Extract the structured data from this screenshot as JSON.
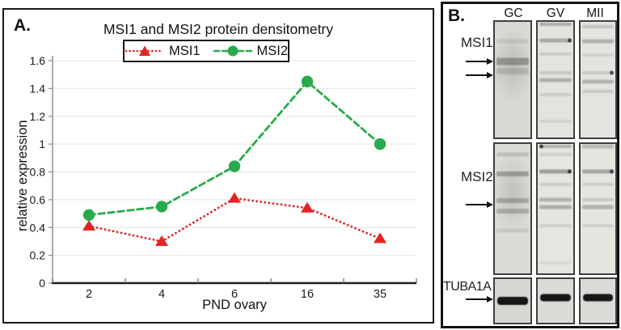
{
  "figure": {
    "panel_a_label": "A.",
    "panel_b_label": "B.",
    "background": "#ffffff"
  },
  "chart_data": {
    "type": "line",
    "title": "MSI1 and MSI2 protein densitometry",
    "categories": [
      "2",
      "4",
      "6",
      "16",
      "35"
    ],
    "series": [
      {
        "name": "MSI1",
        "values": [
          0.41,
          0.3,
          0.61,
          0.54,
          0.32
        ],
        "color": "#e32427",
        "marker": "triangle",
        "line_style": "dotted"
      },
      {
        "name": "MSI2",
        "values": [
          0.49,
          0.55,
          0.84,
          1.45,
          1.0
        ],
        "color": "#28ab4c",
        "marker": "circle",
        "line_style": "dashed"
      }
    ],
    "xlabel": "PND ovary",
    "ylabel": "relative expression",
    "ylim": [
      0,
      1.6
    ],
    "ytick_step": 0.2,
    "ytick_labels": [
      "0",
      "0.2",
      "0.4",
      "0.6",
      "0.8",
      "1",
      "1.2",
      "1.4",
      "1.6"
    ],
    "grid": true,
    "legend_position": "top-center",
    "gridline_color": "#e9e9e9",
    "axis_color": "#8a8a8a"
  },
  "panel_b": {
    "lane_headers": [
      "GC",
      "GV",
      "MII"
    ],
    "blots": [
      {
        "target": "MSI1",
        "label_pct": 19,
        "arrows_pct": [
          35,
          46
        ],
        "lanes": [
          {
            "lane": "GC",
            "bg": "#d9d8d3",
            "smudge": true,
            "bands": [
              {
                "y": 17,
                "o": 0.1,
                "h": 5
              },
              {
                "y": 34,
                "o": 0.36,
                "h": 9
              },
              {
                "y": 43,
                "o": 0.16,
                "h": 8
              }
            ]
          },
          {
            "lane": "GV",
            "bg": "#e4e3de",
            "bands": [
              {
                "y": 2,
                "o": 0.3,
                "h": 4
              },
              {
                "y": 16,
                "o": 0.3,
                "h": 5,
                "dot": "right"
              },
              {
                "y": 28,
                "o": 0.13,
                "h": 4
              },
              {
                "y": 44,
                "o": 0.15,
                "h": 4
              },
              {
                "y": 50,
                "o": 0.28,
                "h": 5
              },
              {
                "y": 63,
                "o": 0.13,
                "h": 4
              },
              {
                "y": 86,
                "o": 0.09,
                "h": 4
              }
            ]
          },
          {
            "lane": "MII",
            "bg": "#e4e3df",
            "bands": [
              {
                "y": 4,
                "o": 0.17,
                "h": 4
              },
              {
                "y": 17,
                "o": 0.28,
                "h": 5
              },
              {
                "y": 29,
                "o": 0.1,
                "h": 4
              },
              {
                "y": 44,
                "o": 0.14,
                "h": 4,
                "dot": "right"
              },
              {
                "y": 52,
                "o": 0.26,
                "h": 5
              },
              {
                "y": 60,
                "o": 0.15,
                "h": 4
              }
            ]
          }
        ]
      },
      {
        "target": "MSI2",
        "label_pct": 26,
        "arrows_pct": [
          47
        ],
        "lanes": [
          {
            "lane": "GC",
            "bg": "#dcdbd6",
            "smudge": true,
            "bands": [
              {
                "y": 8,
                "o": 0.17,
                "h": 5
              },
              {
                "y": 23,
                "o": 0.33,
                "h": 6
              },
              {
                "y": 44,
                "o": 0.27,
                "h": 6
              },
              {
                "y": 52,
                "o": 0.25,
                "h": 6
              },
              {
                "y": 67,
                "o": 0.11,
                "h": 5
              }
            ]
          },
          {
            "lane": "GV",
            "bg": "#e6e5e0",
            "bands": [
              {
                "y": 2,
                "o": 0.28,
                "h": 4,
                "dot": "left"
              },
              {
                "y": 8,
                "o": 0.11,
                "h": 4
              },
              {
                "y": 21,
                "o": 0.38,
                "h": 5,
                "dot": "right"
              },
              {
                "y": 31,
                "o": 0.13,
                "h": 4
              },
              {
                "y": 43,
                "o": 0.28,
                "h": 5
              },
              {
                "y": 49,
                "o": 0.3,
                "h": 5
              },
              {
                "y": 63,
                "o": 0.12,
                "h": 4
              },
              {
                "y": 92,
                "o": 0.07,
                "h": 4
              }
            ]
          },
          {
            "lane": "MII",
            "bg": "#e5e4df",
            "bands": [
              {
                "y": 2,
                "o": 0.24,
                "h": 5
              },
              {
                "y": 21,
                "o": 0.33,
                "h": 5,
                "dot": "right"
              },
              {
                "y": 31,
                "o": 0.12,
                "h": 4
              },
              {
                "y": 43,
                "o": 0.16,
                "h": 4
              },
              {
                "y": 49,
                "o": 0.28,
                "h": 5
              },
              {
                "y": 63,
                "o": 0.11,
                "h": 4
              }
            ]
          }
        ]
      },
      {
        "target": "TUBA1A",
        "label_pct": 20,
        "arrows_pct": [
          46
        ],
        "lanes": [
          {
            "lane": "GC",
            "bg": "#d7d6d1",
            "bands": [
              {
                "y": 50,
                "o": 0.97,
                "h": 10,
                "strong": true
              }
            ]
          },
          {
            "lane": "GV",
            "bg": "#dcdbd7",
            "bands": [
              {
                "y": 42,
                "o": 0.97,
                "h": 9,
                "strong": true
              }
            ]
          },
          {
            "lane": "MII",
            "bg": "#dbdad6",
            "bands": [
              {
                "y": 42,
                "o": 0.97,
                "h": 9,
                "strong": true
              }
            ]
          }
        ]
      }
    ]
  }
}
